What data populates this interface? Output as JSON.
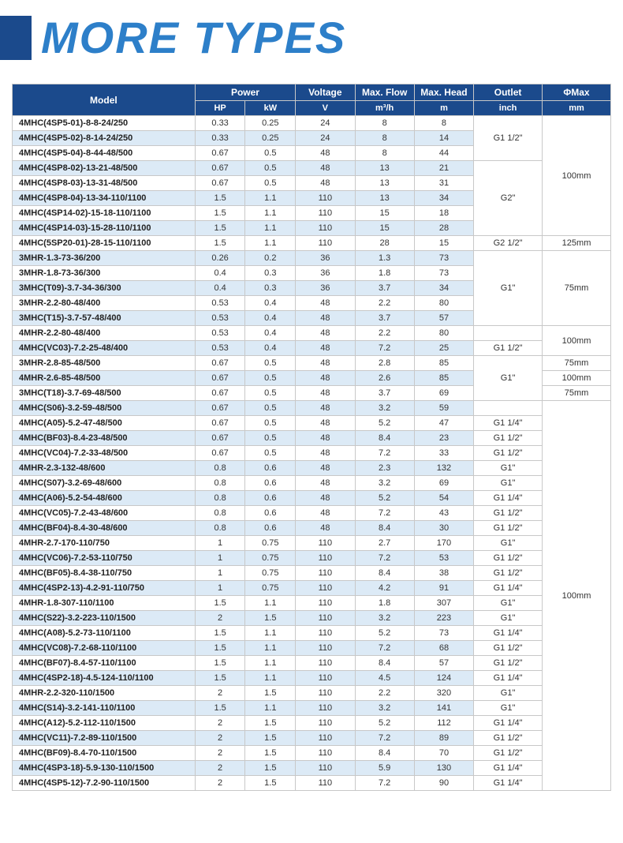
{
  "title": "MORE TYPES",
  "header": {
    "model": "Model",
    "power": "Power",
    "voltage": "Voltage",
    "maxflow": "Max. Flow",
    "maxhead": "Max. Head",
    "outlet": "Outlet",
    "phimax": "ΦMax",
    "hp": "HP",
    "kw": "kW",
    "v": "V",
    "m3h": "m³/h",
    "m": "m",
    "inch": "inch",
    "mm": "mm"
  },
  "rows": [
    {
      "model": "4MHC(4SP5-01)-8-8-24/250",
      "hp": "0.33",
      "kw": "0.25",
      "v": "24",
      "flow": "8",
      "head": "8"
    },
    {
      "model": "4MHC(4SP5-02)-8-14-24/250",
      "hp": "0.33",
      "kw": "0.25",
      "v": "24",
      "flow": "8",
      "head": "14"
    },
    {
      "model": "4MHC(4SP5-04)-8-44-48/500",
      "hp": "0.67",
      "kw": "0.5",
      "v": "48",
      "flow": "8",
      "head": "44"
    },
    {
      "model": "4MHC(4SP8-02)-13-21-48/500",
      "hp": "0.67",
      "kw": "0.5",
      "v": "48",
      "flow": "13",
      "head": "21"
    },
    {
      "model": "4MHC(4SP8-03)-13-31-48/500",
      "hp": "0.67",
      "kw": "0.5",
      "v": "48",
      "flow": "13",
      "head": "31"
    },
    {
      "model": "4MHC(4SP8-04)-13-34-110/1100",
      "hp": "1.5",
      "kw": "1.1",
      "v": "110",
      "flow": "13",
      "head": "34"
    },
    {
      "model": "4MHC(4SP14-02)-15-18-110/1100",
      "hp": "1.5",
      "kw": "1.1",
      "v": "110",
      "flow": "15",
      "head": "18"
    },
    {
      "model": "4MHC(4SP14-03)-15-28-110/1100",
      "hp": "1.5",
      "kw": "1.1",
      "v": "110",
      "flow": "15",
      "head": "28"
    },
    {
      "model": "4MHC(5SP20-01)-28-15-110/1100",
      "hp": "1.5",
      "kw": "1.1",
      "v": "110",
      "flow": "28",
      "head": "15"
    },
    {
      "model": "3MHR-1.3-73-36/200",
      "hp": "0.26",
      "kw": "0.2",
      "v": "36",
      "flow": "1.3",
      "head": "73"
    },
    {
      "model": "3MHR-1.8-73-36/300",
      "hp": "0.4",
      "kw": "0.3",
      "v": "36",
      "flow": "1.8",
      "head": "73"
    },
    {
      "model": "3MHC(T09)-3.7-34-36/300",
      "hp": "0.4",
      "kw": "0.3",
      "v": "36",
      "flow": "3.7",
      "head": "34"
    },
    {
      "model": "3MHR-2.2-80-48/400",
      "hp": "0.53",
      "kw": "0.4",
      "v": "48",
      "flow": "2.2",
      "head": "80"
    },
    {
      "model": "3MHC(T15)-3.7-57-48/400",
      "hp": "0.53",
      "kw": "0.4",
      "v": "48",
      "flow": "3.7",
      "head": "57"
    },
    {
      "model": "4MHR-2.2-80-48/400",
      "hp": "0.53",
      "kw": "0.4",
      "v": "48",
      "flow": "2.2",
      "head": "80"
    },
    {
      "model": "4MHC(VC03)-7.2-25-48/400",
      "hp": "0.53",
      "kw": "0.4",
      "v": "48",
      "flow": "7.2",
      "head": "25"
    },
    {
      "model": "3MHR-2.8-85-48/500",
      "hp": "0.67",
      "kw": "0.5",
      "v": "48",
      "flow": "2.8",
      "head": "85"
    },
    {
      "model": "4MHR-2.6-85-48/500",
      "hp": "0.67",
      "kw": "0.5",
      "v": "48",
      "flow": "2.6",
      "head": "85"
    },
    {
      "model": "3MHC(T18)-3.7-69-48/500",
      "hp": "0.67",
      "kw": "0.5",
      "v": "48",
      "flow": "3.7",
      "head": "69"
    },
    {
      "model": "4MHC(S06)-3.2-59-48/500",
      "hp": "0.67",
      "kw": "0.5",
      "v": "48",
      "flow": "3.2",
      "head": "59"
    },
    {
      "model": "4MHC(A05)-5.2-47-48/500",
      "hp": "0.67",
      "kw": "0.5",
      "v": "48",
      "flow": "5.2",
      "head": "47"
    },
    {
      "model": "4MHC(BF03)-8.4-23-48/500",
      "hp": "0.67",
      "kw": "0.5",
      "v": "48",
      "flow": "8.4",
      "head": "23"
    },
    {
      "model": "4MHC(VC04)-7.2-33-48/500",
      "hp": "0.67",
      "kw": "0.5",
      "v": "48",
      "flow": "7.2",
      "head": "33"
    },
    {
      "model": "4MHR-2.3-132-48/600",
      "hp": "0.8",
      "kw": "0.6",
      "v": "48",
      "flow": "2.3",
      "head": "132"
    },
    {
      "model": "4MHC(S07)-3.2-69-48/600",
      "hp": "0.8",
      "kw": "0.6",
      "v": "48",
      "flow": "3.2",
      "head": "69"
    },
    {
      "model": "4MHC(A06)-5.2-54-48/600",
      "hp": "0.8",
      "kw": "0.6",
      "v": "48",
      "flow": "5.2",
      "head": "54"
    },
    {
      "model": "4MHC(VC05)-7.2-43-48/600",
      "hp": "0.8",
      "kw": "0.6",
      "v": "48",
      "flow": "7.2",
      "head": "43"
    },
    {
      "model": "4MHC(BF04)-8.4-30-48/600",
      "hp": "0.8",
      "kw": "0.6",
      "v": "48",
      "flow": "8.4",
      "head": "30"
    },
    {
      "model": "4MHR-2.7-170-110/750",
      "hp": "1",
      "kw": "0.75",
      "v": "110",
      "flow": "2.7",
      "head": "170"
    },
    {
      "model": "4MHC(VC06)-7.2-53-110/750",
      "hp": "1",
      "kw": "0.75",
      "v": "110",
      "flow": "7.2",
      "head": "53"
    },
    {
      "model": "4MHC(BF05)-8.4-38-110/750",
      "hp": "1",
      "kw": "0.75",
      "v": "110",
      "flow": "8.4",
      "head": "38"
    },
    {
      "model": "4MHC(4SP2-13)-4.2-91-110/750",
      "hp": "1",
      "kw": "0.75",
      "v": "110",
      "flow": "4.2",
      "head": "91"
    },
    {
      "model": "4MHR-1.8-307-110/1100",
      "hp": "1.5",
      "kw": "1.1",
      "v": "110",
      "flow": "1.8",
      "head": "307"
    },
    {
      "model": "4MHC(S22)-3.2-223-110/1500",
      "hp": "2",
      "kw": "1.5",
      "v": "110",
      "flow": "3.2",
      "head": "223"
    },
    {
      "model": "4MHC(A08)-5.2-73-110/1100",
      "hp": "1.5",
      "kw": "1.1",
      "v": "110",
      "flow": "5.2",
      "head": "73"
    },
    {
      "model": "4MHC(VC08)-7.2-68-110/1100",
      "hp": "1.5",
      "kw": "1.1",
      "v": "110",
      "flow": "7.2",
      "head": "68"
    },
    {
      "model": "4MHC(BF07)-8.4-57-110/1100",
      "hp": "1.5",
      "kw": "1.1",
      "v": "110",
      "flow": "8.4",
      "head": "57"
    },
    {
      "model": "4MHC(4SP2-18)-4.5-124-110/1100",
      "hp": "1.5",
      "kw": "1.1",
      "v": "110",
      "flow": "4.5",
      "head": "124"
    },
    {
      "model": "4MHR-2.2-320-110/1500",
      "hp": "2",
      "kw": "1.5",
      "v": "110",
      "flow": "2.2",
      "head": "320"
    },
    {
      "model": "4MHC(S14)-3.2-141-110/1100",
      "hp": "1.5",
      "kw": "1.1",
      "v": "110",
      "flow": "3.2",
      "head": "141"
    },
    {
      "model": "4MHC(A12)-5.2-112-110/1500",
      "hp": "2",
      "kw": "1.5",
      "v": "110",
      "flow": "5.2",
      "head": "112"
    },
    {
      "model": "4MHC(VC11)-7.2-89-110/1500",
      "hp": "2",
      "kw": "1.5",
      "v": "110",
      "flow": "7.2",
      "head": "89"
    },
    {
      "model": "4MHC(BF09)-8.4-70-110/1500",
      "hp": "2",
      "kw": "1.5",
      "v": "110",
      "flow": "8.4",
      "head": "70"
    },
    {
      "model": "4MHC(4SP3-18)-5.9-130-110/1500",
      "hp": "2",
      "kw": "1.5",
      "v": "110",
      "flow": "5.9",
      "head": "130"
    },
    {
      "model": "4MHC(4SP5-12)-7.2-90-110/1500",
      "hp": "2",
      "kw": "1.5",
      "v": "110",
      "flow": "7.2",
      "head": "90"
    }
  ],
  "outlet_groups": [
    {
      "start": 0,
      "span": 3,
      "text": "G1 1/2\""
    },
    {
      "start": 3,
      "span": 5,
      "text": "G2\""
    },
    {
      "start": 8,
      "span": 1,
      "text": "G2 1/2\""
    },
    {
      "start": 9,
      "span": 5,
      "text": "G1\""
    },
    {
      "start": 14,
      "span": 1,
      "text": ""
    },
    {
      "start": 15,
      "span": 1,
      "text": "G1 1/2\""
    },
    {
      "start": 16,
      "span": 3,
      "text": "G1\""
    },
    {
      "start": 19,
      "span": 1,
      "text": ""
    },
    {
      "start": 20,
      "span": 1,
      "text": "G1 1/4\""
    },
    {
      "start": 21,
      "span": 1,
      "text": "G1 1/2\""
    },
    {
      "start": 22,
      "span": 1,
      "text": "G1 1/2\""
    },
    {
      "start": 23,
      "span": 1,
      "text": "G1\""
    },
    {
      "start": 24,
      "span": 1,
      "text": "G1\""
    },
    {
      "start": 25,
      "span": 1,
      "text": "G1 1/4\""
    },
    {
      "start": 26,
      "span": 1,
      "text": "G1 1/2\""
    },
    {
      "start": 27,
      "span": 1,
      "text": "G1 1/2\""
    },
    {
      "start": 28,
      "span": 1,
      "text": "G1\""
    },
    {
      "start": 29,
      "span": 1,
      "text": "G1 1/2\""
    },
    {
      "start": 30,
      "span": 1,
      "text": "G1 1/2\""
    },
    {
      "start": 31,
      "span": 1,
      "text": "G1 1/4\""
    },
    {
      "start": 32,
      "span": 1,
      "text": "G1\""
    },
    {
      "start": 33,
      "span": 1,
      "text": "G1\""
    },
    {
      "start": 34,
      "span": 1,
      "text": "G1 1/4\""
    },
    {
      "start": 35,
      "span": 1,
      "text": "G1 1/2\""
    },
    {
      "start": 36,
      "span": 1,
      "text": "G1 1/2\""
    },
    {
      "start": 37,
      "span": 1,
      "text": "G1 1/4\""
    },
    {
      "start": 38,
      "span": 1,
      "text": "G1\""
    },
    {
      "start": 39,
      "span": 1,
      "text": "G1\""
    },
    {
      "start": 40,
      "span": 1,
      "text": "G1 1/4\""
    },
    {
      "start": 41,
      "span": 1,
      "text": "G1 1/2\""
    },
    {
      "start": 42,
      "span": 1,
      "text": "G1 1/2\""
    },
    {
      "start": 43,
      "span": 1,
      "text": "G1 1/4\""
    },
    {
      "start": 44,
      "span": 1,
      "text": "G1 1/4\""
    }
  ],
  "phi_groups": [
    {
      "start": 0,
      "span": 8,
      "text": "100mm"
    },
    {
      "start": 8,
      "span": 1,
      "text": "125mm"
    },
    {
      "start": 9,
      "span": 5,
      "text": "75mm"
    },
    {
      "start": 14,
      "span": 2,
      "text": "100mm"
    },
    {
      "start": 16,
      "span": 1,
      "text": "75mm"
    },
    {
      "start": 17,
      "span": 1,
      "text": "100mm"
    },
    {
      "start": 18,
      "span": 1,
      "text": "75mm"
    },
    {
      "start": 19,
      "span": 26,
      "text": "100mm"
    }
  ],
  "shade_rows": [
    1,
    3,
    5,
    7,
    9,
    11,
    13,
    15,
    17,
    19,
    21,
    23,
    25,
    27,
    29,
    31,
    33,
    35,
    37,
    39,
    41,
    43
  ],
  "colors": {
    "header_bg": "#1b4a8c",
    "title_color": "#2d7fc9",
    "shade_bg": "#dceaf6",
    "border": "#c8c8c8"
  }
}
